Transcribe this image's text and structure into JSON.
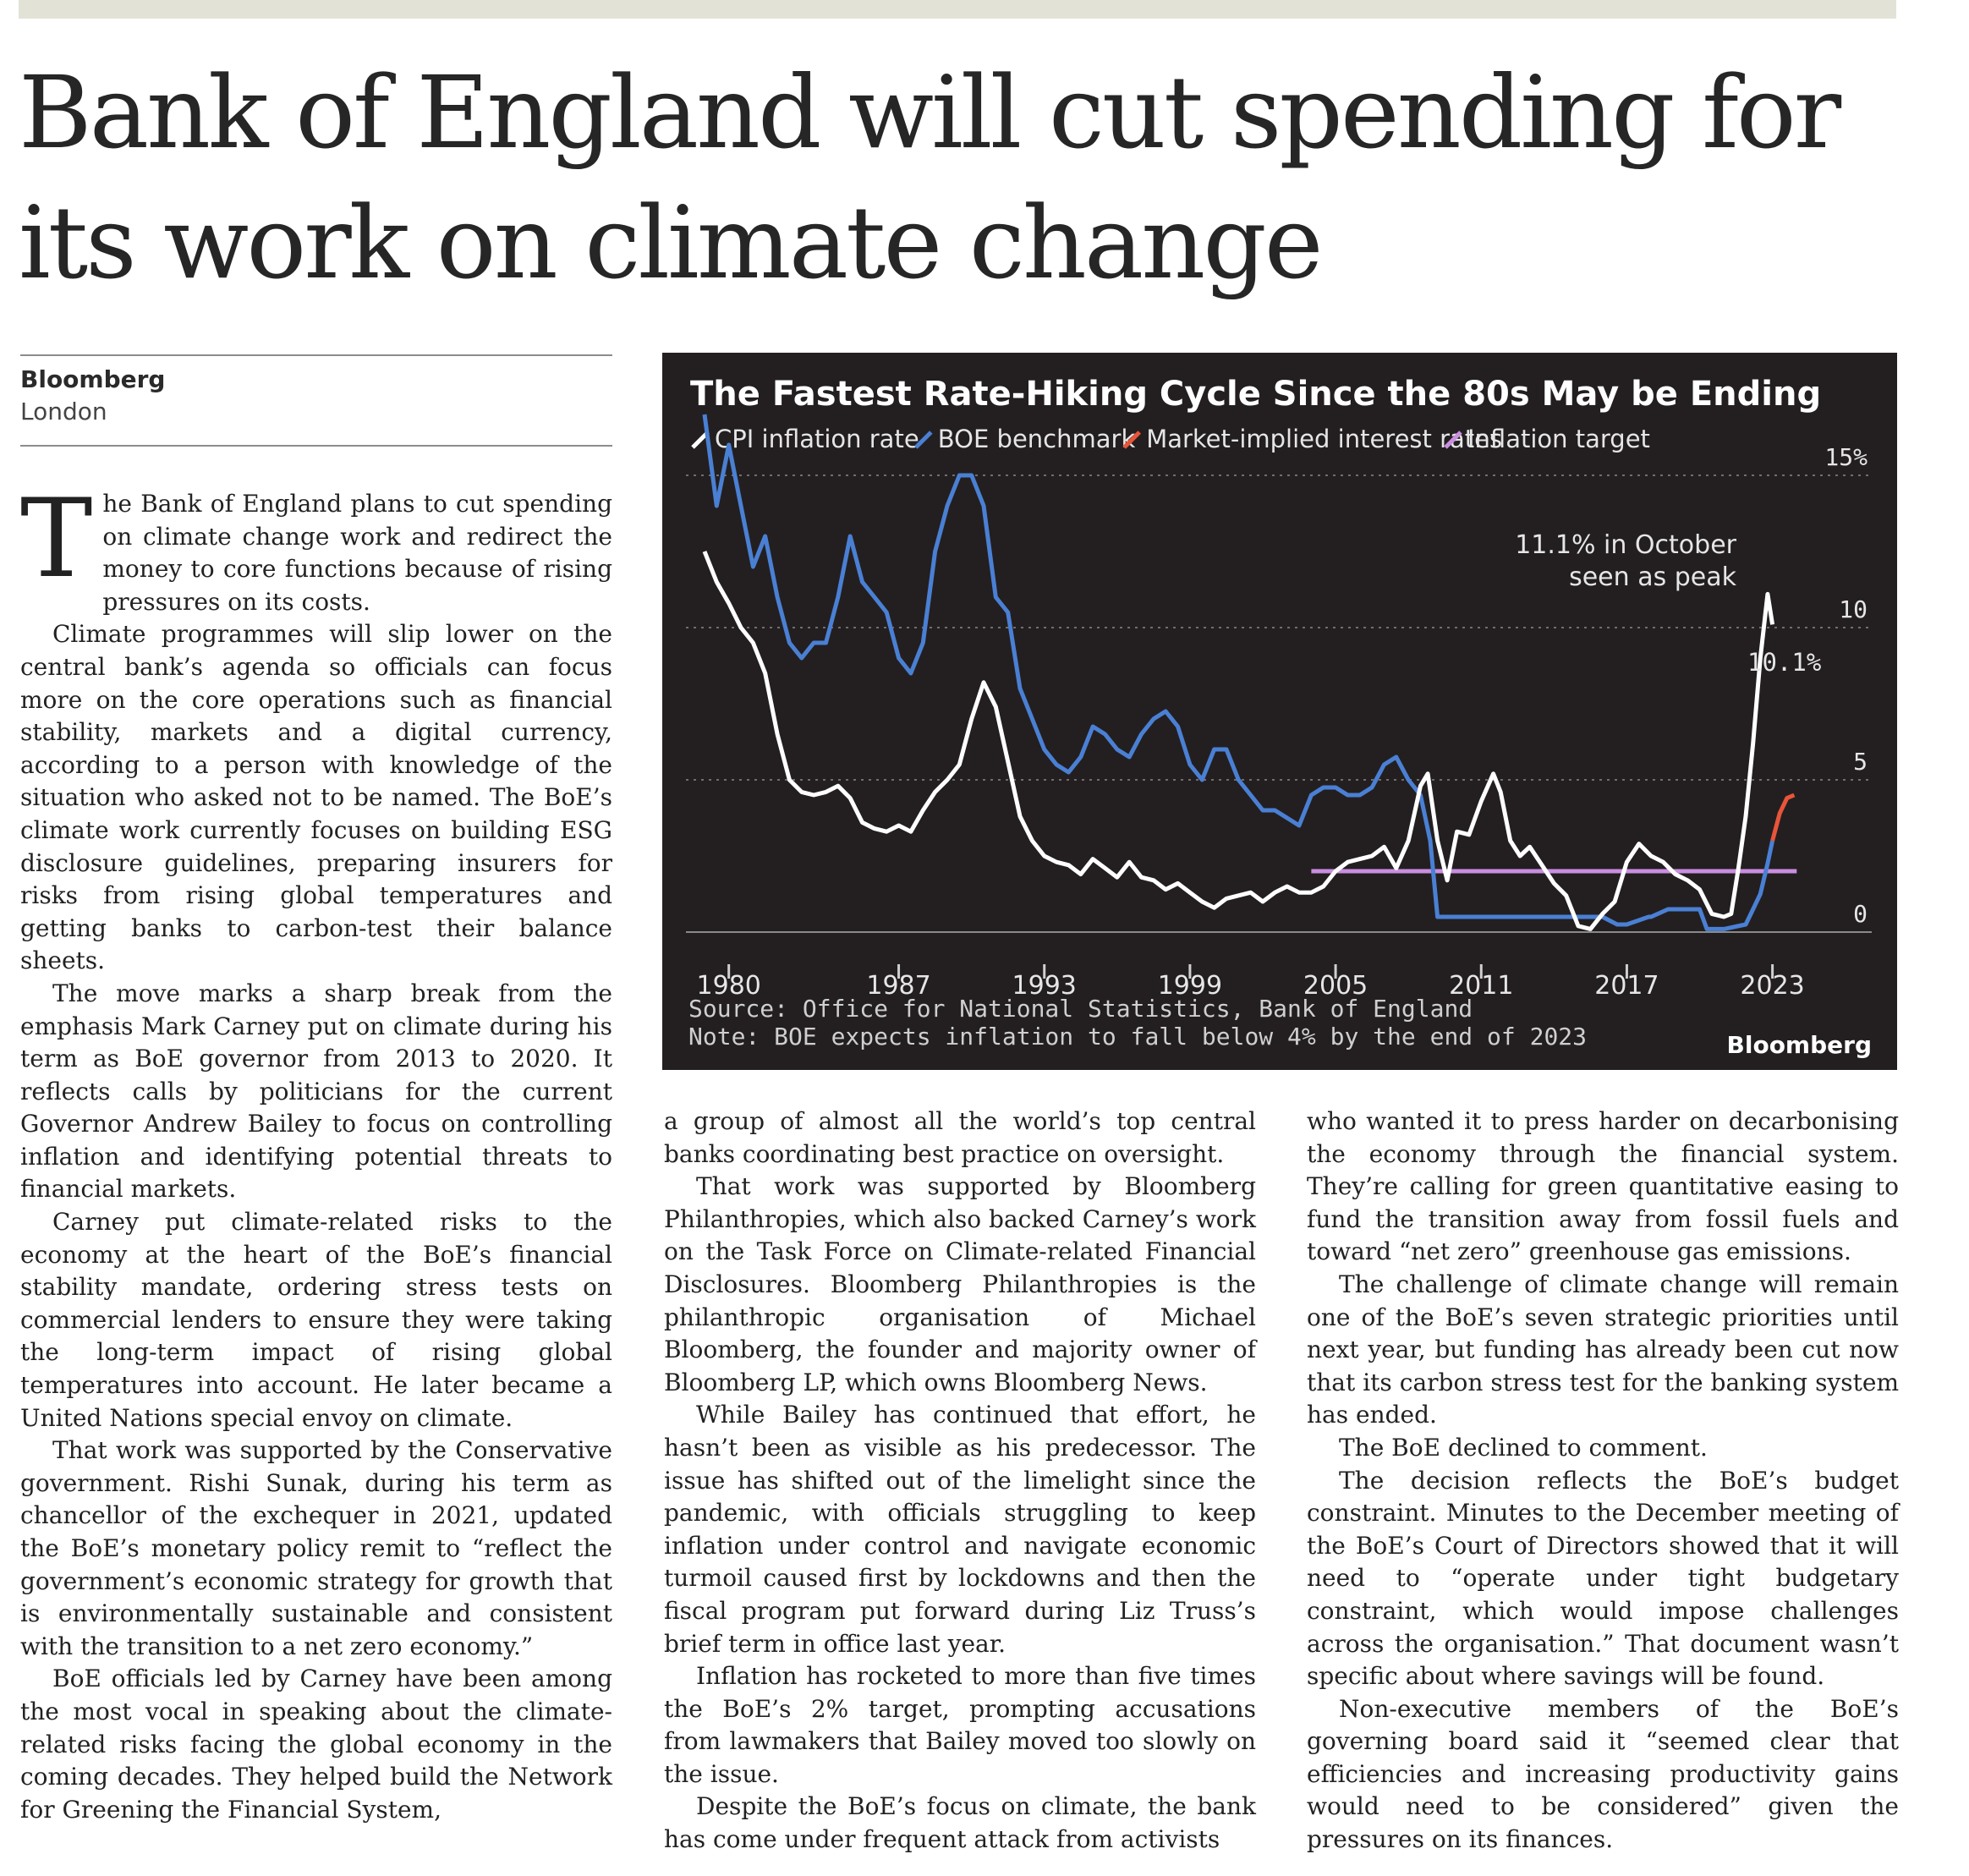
{
  "headline": "Bank of England will cut spending for its work on climate change",
  "byline": {
    "source": "Bloomberg",
    "dateline": "London"
  },
  "dropcap": "T",
  "columns": [
    [
      "he Bank of England plans to cut spending on climate change work and redirect the money to core functions because of rising pressures on its costs.",
      "Climate programmes will slip lower on the central bank’s agenda so officials can focus more on the core operations such as financial stability, markets and a digital currency, according to a person with knowledge of the situation who asked not to be named. The BoE’s climate work currently focuses on building ESG disclosure guidelines, preparing insurers for risks from rising global temperatures and getting banks to carbon-test their balance sheets.",
      "The move marks a sharp break from the emphasis Mark Carney put on climate during his term as BoE governor from 2013 to 2020. It reflects calls by politicians for the current Governor Andrew Bailey to focus on controlling inflation and identifying potential threats to financial markets.",
      "Carney put climate-related risks to the economy at the heart of the BoE’s financial stability mandate, ordering stress tests on commercial lenders to ensure they were taking the long-term impact of rising global temperatures into account. He later became a United Nations special envoy on climate.",
      "That work was supported by the Conservative government. Rishi Sunak, during his term as chancellor of the exchequer in 2021, updated the BoE’s monetary policy remit to “reflect the government’s economic strategy for growth that is environmentally sustainable and consistent with the transition to a net zero economy.”",
      "BoE officials led by Carney have been among the most vocal in speaking about the climate-related risks facing the global economy in the coming decades. They helped build the Network for Greening the Financial System,"
    ],
    [
      "a group of almost all the world’s top central banks coordinating best practice on oversight.",
      "That work was supported by Bloomberg Philanthropies, which also backed Carney’s work on the Task Force on Climate-related Financial Disclosures. Bloomberg Philanthropies is the philanthropic organisation of Michael Bloomberg, the founder and majority owner of Bloomberg LP, which owns Bloomberg News.",
      "While Bailey has continued that effort, he hasn’t been as visible as his predecessor. The issue has shifted out of the limelight since the pandemic, with officials struggling to keep inflation under control and navigate economic turmoil caused first by lockdowns and then the fiscal program put forward during Liz Truss’s brief term in office last year.",
      "Inflation has rocketed to more than five times the BoE’s 2% target, prompting accusations from lawmakers that Bailey moved too slowly on the issue.",
      "Despite the BoE’s focus on climate, the bank has come under frequent attack from activists"
    ],
    [
      "who wanted it to press harder on decarbonising the economy through the financial system. They’re calling for green quantitative easing to fund the transition away from fossil fuels and toward “net zero” greenhouse gas emissions.",
      "The challenge of climate change will remain one of the BoE’s seven strategic priorities until next year, but funding has already been cut now that its carbon stress test for the banking system has ended.",
      "The BoE declined to comment.",
      "The decision reflects the BoE’s budget constraint. Minutes to the December meeting of the BoE’s Court of Directors showed that it will need to “operate under tight budgetary constraint, which would impose challenges across the organisation.” That document wasn’t specific about where savings will be found.",
      "Non-executive members of the BoE’s governing board said it “seemed clear that efficiencies and increasing productivity gains would need to be considered” given the pressures on its finances."
    ]
  ],
  "chart_data": {
    "type": "line",
    "title": "The Fastest Rate-Hiking Cycle Since the 80s May be Ending",
    "xlabel": "",
    "ylabel": "",
    "xlim": [
      1979,
      2025
    ],
    "ylim": [
      0,
      15
    ],
    "x_ticks": [
      "1980",
      "1987",
      "1993",
      "1999",
      "2005",
      "2011",
      "2017",
      "2023"
    ],
    "y_ticks": [
      "15%",
      "10",
      "5",
      "0"
    ],
    "legend_position": "top",
    "series": [
      {
        "name": "CPI inflation rate",
        "color": "#ffffff",
        "x": [
          1979.0,
          1979.5,
          1980.0,
          1980.5,
          1981.0,
          1981.5,
          1982.0,
          1982.5,
          1983.0,
          1983.5,
          1984.0,
          1984.5,
          1985.0,
          1985.5,
          1986.0,
          1986.5,
          1987.0,
          1987.5,
          1988.0,
          1988.5,
          1989.0,
          1989.5,
          1990.0,
          1990.5,
          1991.0,
          1991.5,
          1992.0,
          1992.5,
          1993.0,
          1993.5,
          1994.0,
          1994.5,
          1995.0,
          1995.5,
          1996.0,
          1996.5,
          1997.0,
          1997.5,
          1998.0,
          1998.5,
          1999.0,
          1999.5,
          2000.0,
          2000.5,
          2001.0,
          2001.5,
          2002.0,
          2002.5,
          2003.0,
          2003.5,
          2004.0,
          2004.5,
          2005.0,
          2005.5,
          2006.0,
          2006.5,
          2007.0,
          2007.5,
          2008.0,
          2008.5,
          2008.8,
          2009.2,
          2009.6,
          2010.0,
          2010.5,
          2011.0,
          2011.5,
          2011.8,
          2012.2,
          2012.6,
          2013.0,
          2013.5,
          2014.0,
          2014.5,
          2015.0,
          2015.5,
          2016.0,
          2016.5,
          2017.0,
          2017.5,
          2018.0,
          2018.5,
          2019.0,
          2019.5,
          2020.0,
          2020.5,
          2021.0,
          2021.3,
          2021.6,
          2021.9,
          2022.2,
          2022.5,
          2022.8,
          2023.0
        ],
        "values": [
          12.5,
          11.5,
          10.8,
          10.0,
          9.5,
          8.5,
          6.5,
          5.0,
          4.6,
          4.5,
          4.6,
          4.8,
          4.4,
          3.6,
          3.4,
          3.3,
          3.5,
          3.3,
          4.0,
          4.6,
          5.0,
          5.5,
          7.0,
          8.2,
          7.4,
          5.6,
          3.8,
          3.0,
          2.5,
          2.3,
          2.2,
          1.9,
          2.4,
          2.1,
          1.8,
          2.3,
          1.8,
          1.7,
          1.4,
          1.6,
          1.3,
          1.0,
          0.8,
          1.1,
          1.2,
          1.3,
          1.0,
          1.3,
          1.5,
          1.3,
          1.3,
          1.5,
          2.0,
          2.3,
          2.4,
          2.5,
          2.8,
          2.1,
          3.0,
          4.8,
          5.2,
          3.0,
          1.7,
          3.3,
          3.2,
          4.3,
          5.2,
          4.6,
          3.0,
          2.5,
          2.8,
          2.2,
          1.6,
          1.2,
          0.2,
          0.1,
          0.6,
          1.0,
          2.3,
          2.9,
          2.5,
          2.3,
          1.9,
          1.7,
          1.4,
          0.6,
          0.5,
          0.6,
          2.1,
          3.8,
          6.2,
          9.0,
          11.1,
          10.1
        ]
      },
      {
        "name": "BOE benchmark",
        "color": "#4a80d4",
        "x": [
          1979.0,
          1979.5,
          1980.0,
          1980.5,
          1981.0,
          1981.5,
          1982.0,
          1982.5,
          1983.0,
          1983.5,
          1984.0,
          1984.5,
          1985.0,
          1985.5,
          1986.0,
          1986.5,
          1987.0,
          1987.5,
          1988.0,
          1988.5,
          1989.0,
          1989.5,
          1990.0,
          1990.5,
          1991.0,
          1991.5,
          1992.0,
          1992.5,
          1993.0,
          1993.5,
          1994.0,
          1994.5,
          1995.0,
          1995.5,
          1996.0,
          1996.5,
          1997.0,
          1997.5,
          1998.0,
          1998.5,
          1999.0,
          1999.5,
          2000.0,
          2000.5,
          2001.0,
          2001.5,
          2002.0,
          2002.5,
          2003.0,
          2003.5,
          2004.0,
          2004.5,
          2005.0,
          2005.5,
          2006.0,
          2006.5,
          2007.0,
          2007.5,
          2008.0,
          2008.5,
          2008.9,
          2009.2,
          2010.0,
          2011.0,
          2012.0,
          2013.0,
          2014.0,
          2015.0,
          2016.0,
          2016.6,
          2017.0,
          2017.9,
          2018.0,
          2018.7,
          2019.0,
          2020.0,
          2020.3,
          2021.0,
          2021.9,
          2022.2,
          2022.5,
          2022.8,
          2023.0
        ],
        "values": [
          17.0,
          14.0,
          16.0,
          14.0,
          12.0,
          13.0,
          11.0,
          9.5,
          9.0,
          9.5,
          9.5,
          11.0,
          13.0,
          11.5,
          11.0,
          10.5,
          9.0,
          8.5,
          9.5,
          12.5,
          14.0,
          15.0,
          15.0,
          14.0,
          11.0,
          10.5,
          8.0,
          7.0,
          6.0,
          5.5,
          5.25,
          5.75,
          6.75,
          6.5,
          6.0,
          5.75,
          6.5,
          7.0,
          7.25,
          6.75,
          5.5,
          5.0,
          6.0,
          6.0,
          5.0,
          4.5,
          4.0,
          4.0,
          3.75,
          3.5,
          4.5,
          4.75,
          4.75,
          4.5,
          4.5,
          4.75,
          5.5,
          5.75,
          5.0,
          4.5,
          3.0,
          0.5,
          0.5,
          0.5,
          0.5,
          0.5,
          0.5,
          0.5,
          0.5,
          0.25,
          0.25,
          0.5,
          0.5,
          0.75,
          0.75,
          0.75,
          0.1,
          0.1,
          0.25,
          0.75,
          1.25,
          2.25,
          3.0
        ]
      },
      {
        "name": "Market-implied interest rates",
        "color": "#e8553a",
        "x": [
          2023.0,
          2023.3,
          2023.6,
          2023.9
        ],
        "values": [
          3.0,
          3.9,
          4.4,
          4.5
        ]
      },
      {
        "name": "Inflation target",
        "color": "#c98ee0",
        "x": [
          2004.0,
          2024.0
        ],
        "values": [
          2.0,
          2.0
        ]
      }
    ],
    "annotations": [
      "11.1% in October\nseen as peak",
      "10.1%"
    ],
    "source": "Source: Office for National Statistics, Bank of England",
    "note": "Note: BOE expects inflation to fall below 4% by the end of 2023",
    "brand": "Bloomberg"
  }
}
